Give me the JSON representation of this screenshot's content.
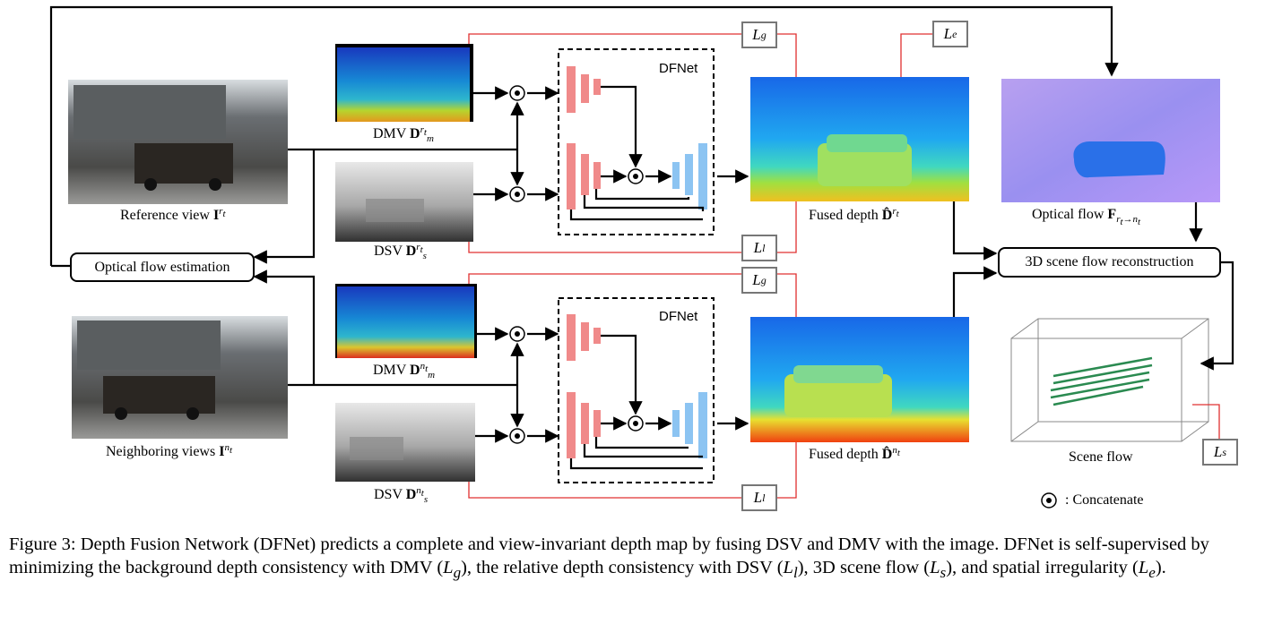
{
  "labels": {
    "reference_view": "Reference view",
    "neighboring_views": "Neighboring views",
    "dmv_top": "DMV",
    "dsv_top": "DSV",
    "dmv_bottom": "DMV",
    "dsv_bottom": "DSV",
    "fused_depth_top": "Fused depth",
    "fused_depth_bottom": "Fused depth",
    "optical_flow": "Optical flow",
    "scene_flow": "Scene flow",
    "concatenate": ": Concatenate"
  },
  "symbols": {
    "I": "I",
    "D": "D",
    "D_hat": "D̂",
    "F": "F",
    "rt": "r",
    "nt": "n",
    "t": "t",
    "m": "m",
    "s": "s",
    "rt_to_nt": "→"
  },
  "boxes": {
    "optical_flow_estimation": "Optical flow estimation",
    "scene_flow_reconstruction": "3D scene flow reconstruction"
  },
  "dfnet": {
    "top_title": "DFNet",
    "bottom_title": "DFNet"
  },
  "losses": {
    "lg_top": "L",
    "lg_top_sub": "g",
    "le": "L",
    "le_sub": "e",
    "ll_top": "L",
    "ll_top_sub": "l",
    "lg_bottom": "L",
    "lg_bottom_sub": "g",
    "ll_bottom": "L",
    "ll_bottom_sub": "l",
    "ls": "L",
    "ls_sub": "s"
  },
  "caption": {
    "part1": "Figure 3: Depth Fusion Network (DFNet) predicts a complete and view-invariant depth map by fusing DSV and DMV with the image. DFNet is self-supervised by minimizing the background depth consistency with DMV (",
    "lg": "L",
    "lg_sub": "g",
    "part2": "), the relative depth consistency with DSV (",
    "ll": "L",
    "ll_sub": "l",
    "part3": "), 3D scene flow (",
    "ls": "L",
    "ls_sub": "s",
    "part4": "), and spatial irregularity (",
    "le": "L",
    "le_sub": "e",
    "part5": ")."
  },
  "colors": {
    "encoder": "#f08a8a",
    "decoder": "#8cc4f2",
    "loss_line": "#e03030",
    "loss_box": "#777777"
  }
}
